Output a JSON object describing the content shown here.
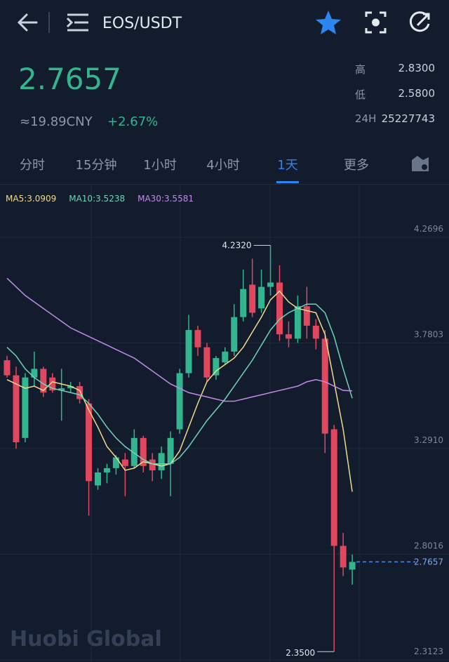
{
  "header": {
    "title": "EOS/USDT"
  },
  "ticker": {
    "price": "2.7657",
    "cny": "≈19.89CNY",
    "change": "+2.67%",
    "stats": [
      {
        "label": "高",
        "value": "2.8300"
      },
      {
        "label": "低",
        "value": "2.5800"
      },
      {
        "label": "24H",
        "value": "25227743"
      }
    ]
  },
  "tabs": [
    "分时",
    "15分钟",
    "1小时",
    "4小时",
    "1天",
    "更多"
  ],
  "active_tab": 4,
  "watermark": "Huobi Global",
  "chart_data": {
    "type": "candlestick",
    "open": [
      3.7,
      3.63,
      3.34,
      3.62,
      3.66,
      3.62,
      3.56,
      3.57,
      3.58,
      3.5,
      3.12,
      3.18,
      3.2,
      3.24,
      3.21,
      3.34,
      3.24,
      3.19,
      3.22,
      3.38,
      3.64,
      3.84,
      3.76,
      3.63,
      3.69,
      3.74,
      3.9,
      4.05,
      3.94,
      4.04,
      4.06,
      3.82,
      3.8,
      3.95,
      3.86,
      3.8,
      3.38,
      2.84,
      2.73
    ],
    "high": [
      3.72,
      3.67,
      3.64,
      3.74,
      3.67,
      3.64,
      3.66,
      3.6,
      3.6,
      3.52,
      3.2,
      3.22,
      3.26,
      3.27,
      3.38,
      3.35,
      3.27,
      3.3,
      3.37,
      3.66,
      3.91,
      3.86,
      3.78,
      3.72,
      3.76,
      3.96,
      4.12,
      4.17,
      4.12,
      4.232,
      4.14,
      3.88,
      4.0,
      4.04,
      3.89,
      3.84,
      3.4,
      2.9,
      2.8
    ],
    "low": [
      3.62,
      3.29,
      3.32,
      3.58,
      3.53,
      3.55,
      3.42,
      3.55,
      3.5,
      2.98,
      3.1,
      3.13,
      3.17,
      3.07,
      3.2,
      3.18,
      3.14,
      3.15,
      3.07,
      3.36,
      3.62,
      3.72,
      3.6,
      3.61,
      3.68,
      3.72,
      3.88,
      3.9,
      3.92,
      4.0,
      3.79,
      3.76,
      3.78,
      3.8,
      3.75,
      3.27,
      2.35,
      2.7,
      2.66
    ],
    "close": [
      3.63,
      3.32,
      3.62,
      3.66,
      3.55,
      3.56,
      3.57,
      3.58,
      3.52,
      3.14,
      3.18,
      3.2,
      3.25,
      3.21,
      3.34,
      3.21,
      3.19,
      3.27,
      3.34,
      3.64,
      3.84,
      3.76,
      3.62,
      3.71,
      3.74,
      3.9,
      4.03,
      3.92,
      4.04,
      4.06,
      3.82,
      3.8,
      3.95,
      3.86,
      3.8,
      3.36,
      2.84,
      2.74,
      2.7657
    ],
    "up_color": "#33b58f",
    "down_color": "#e0485f",
    "series": [
      {
        "name": "MA5:3.0909",
        "color": "#f0dc8a",
        "values": [
          3.61,
          3.59,
          3.57,
          3.58,
          3.56,
          3.6,
          3.59,
          3.58,
          3.56,
          3.47,
          3.39,
          3.3,
          3.25,
          3.19,
          3.2,
          3.23,
          3.22,
          3.21,
          3.22,
          3.28,
          3.39,
          3.5,
          3.6,
          3.65,
          3.68,
          3.71,
          3.76,
          3.83,
          3.9,
          3.98,
          4.02,
          3.97,
          3.94,
          3.93,
          3.92,
          3.82,
          3.6,
          3.38,
          3.0909
        ]
      },
      {
        "name": "MA10:3.5238",
        "color": "#6fd3b8",
        "values": [
          3.76,
          3.72,
          3.66,
          3.62,
          3.59,
          3.57,
          3.56,
          3.55,
          3.54,
          3.5,
          3.45,
          3.39,
          3.34,
          3.3,
          3.27,
          3.24,
          3.22,
          3.22,
          3.22,
          3.25,
          3.3,
          3.36,
          3.42,
          3.47,
          3.52,
          3.58,
          3.64,
          3.7,
          3.77,
          3.84,
          3.89,
          3.92,
          3.94,
          3.96,
          3.96,
          3.92,
          3.81,
          3.66,
          3.5238
        ]
      },
      {
        "name": "MA30:3.5581",
        "color": "#c08be8",
        "values": [
          4.08,
          4.04,
          4.0,
          3.97,
          3.94,
          3.91,
          3.88,
          3.85,
          3.83,
          3.81,
          3.79,
          3.77,
          3.75,
          3.73,
          3.71,
          3.68,
          3.65,
          3.62,
          3.59,
          3.57,
          3.55,
          3.54,
          3.53,
          3.52,
          3.51,
          3.51,
          3.52,
          3.53,
          3.54,
          3.55,
          3.56,
          3.57,
          3.58,
          3.6,
          3.61,
          3.6,
          3.58,
          3.56,
          3.5581
        ]
      }
    ],
    "ylim": [
      2.302,
      4.507
    ],
    "yticks": [
      4.2696,
      3.7803,
      {
        "value": 3.291,
        "label": "3.2910"
      },
      2.8016,
      2.3123
    ],
    "grid": true,
    "annotations": [
      {
        "value": 4.232,
        "label": "4.2320"
      },
      {
        "value": 2.35,
        "label": "2.3500"
      },
      {
        "value": 2.7657,
        "label": "2.7657"
      }
    ]
  }
}
